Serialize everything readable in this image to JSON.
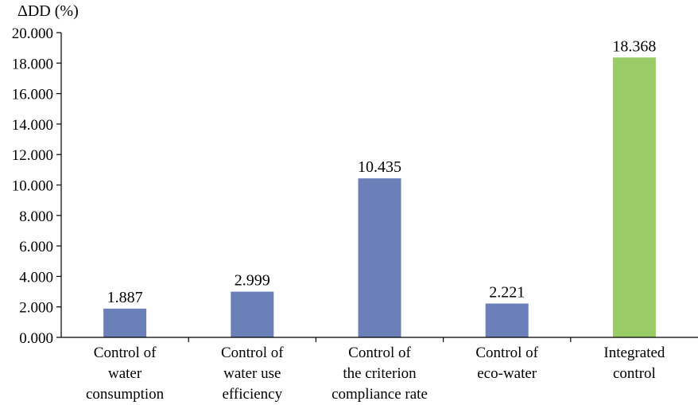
{
  "chart_data": {
    "type": "bar",
    "ylabel": "ΔDD (%)",
    "xlabel": "",
    "title": "",
    "ylim": [
      0,
      20
    ],
    "yticks": [
      0,
      2,
      4,
      6,
      8,
      10,
      12,
      14,
      16,
      18,
      20
    ],
    "ytick_labels": [
      "0.000",
      "2.000",
      "4.000",
      "6.000",
      "8.000",
      "10.000",
      "12.000",
      "14.000",
      "16.000",
      "18.000",
      "20.000"
    ],
    "categories": [
      [
        "Control of",
        "water",
        "consumption"
      ],
      [
        "Control of",
        "water use",
        "efficiency"
      ],
      [
        "Control of",
        "the criterion",
        "compliance rate"
      ],
      [
        "Control of",
        "eco-water"
      ],
      [
        "Integrated",
        "control"
      ]
    ],
    "values": [
      1.887,
      2.999,
      10.435,
      2.221,
      18.368
    ],
    "value_labels": [
      "1.887",
      "2.999",
      "10.435",
      "2.221",
      "18.368"
    ],
    "bar_colors": [
      "#6b7fb9",
      "#6b7fb9",
      "#6b7fb9",
      "#6b7fb9",
      "#99cc66"
    ],
    "grid": false,
    "legend": "none"
  }
}
